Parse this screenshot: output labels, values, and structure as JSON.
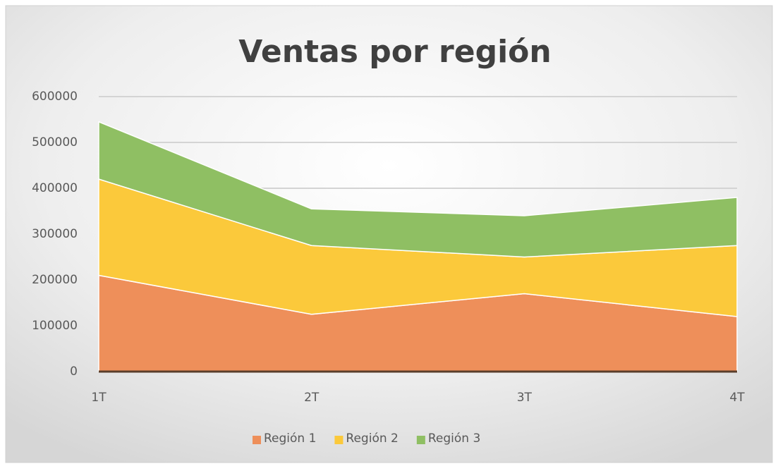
{
  "chart_data": {
    "type": "stacked_area",
    "title": "Ventas por región",
    "categories": [
      "1T",
      "2T",
      "3T",
      "4T"
    ],
    "series": [
      {
        "name": "Región 1",
        "color": "#ee8f5a",
        "values": [
          210000,
          125000,
          170000,
          120000
        ]
      },
      {
        "name": "Región 2",
        "color": "#fbc93b",
        "values": [
          210000,
          150000,
          80000,
          155000
        ]
      },
      {
        "name": "Región 3",
        "color": "#8fbf63",
        "values": [
          125000,
          80000,
          90000,
          105000
        ]
      }
    ],
    "ylim": [
      0,
      600000
    ],
    "yticks": [
      0,
      100000,
      200000,
      300000,
      400000,
      500000,
      600000
    ],
    "grid": true,
    "legend": "bottom"
  }
}
